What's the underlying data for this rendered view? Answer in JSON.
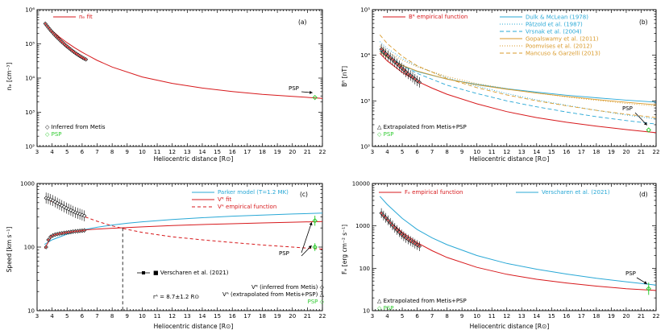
{
  "colors": {
    "red": "#d7191c",
    "cyan": "#29a8d6",
    "orange": "#d99a2b",
    "green": "#33cc33",
    "black": "#000000",
    "gray": "#8a8a8a"
  },
  "chart_data": [
    {
      "type": "line",
      "panel_label": "(a)",
      "xlabel": "Heliocentric distance [R⊙]",
      "ylabel": "nₑ [cm⁻³]",
      "xlim": [
        3,
        22
      ],
      "ylim": [
        100,
        1000000
      ],
      "xticks": [
        3,
        4,
        5,
        6,
        7,
        8,
        9,
        10,
        11,
        12,
        13,
        14,
        15,
        16,
        17,
        18,
        19,
        20,
        21,
        22
      ],
      "yticks": [
        100,
        1000,
        10000,
        100000,
        1000000
      ],
      "ytick_labels": [
        "10²",
        "10³",
        "10⁴",
        "10⁵",
        "10⁶"
      ],
      "legend_top": "nₑ fit",
      "legend_bottom": [
        "◇ Inferred from Metis",
        "◇ PSP"
      ],
      "fit": {
        "x": [
          3.5,
          4,
          4.5,
          5,
          5.5,
          6,
          6.3,
          7,
          8,
          10,
          12,
          14,
          16,
          18,
          20,
          22
        ],
        "y": [
          400000,
          245000,
          158000,
          108000,
          77000,
          57000,
          48000,
          33000,
          21000,
          10800,
          7000,
          5100,
          4050,
          3350,
          2900,
          2550
        ]
      },
      "metis": {
        "x": [
          3.55,
          3.65,
          3.75,
          3.85,
          3.95,
          4.05,
          4.15,
          4.25,
          4.35,
          4.45,
          4.55,
          4.65,
          4.75,
          4.85,
          4.95,
          5.05,
          5.15,
          5.25,
          5.35,
          5.45,
          5.55,
          5.65,
          5.75,
          5.85,
          5.95,
          6.05,
          6.15,
          6.25
        ],
        "y": [
          390000,
          340000,
          300000,
          265000,
          235000,
          210000,
          188000,
          168000,
          152000,
          138000,
          125000,
          114000,
          104000,
          95000,
          87000,
          80000,
          73500,
          68000,
          62500,
          58000,
          54000,
          50500,
          47000,
          44000,
          41500,
          39000,
          37000,
          35000
        ]
      },
      "psp": {
        "x": 21.5,
        "y": 2700,
        "label": "PSP"
      }
    },
    {
      "type": "line",
      "panel_label": "(b)",
      "xlabel": "Heliocentric distance [R⊙]",
      "ylabel": "Bᴿ [nT]",
      "xlim": [
        3,
        22
      ],
      "ylim": [
        100,
        100000
      ],
      "xticks": [
        3,
        4,
        5,
        6,
        7,
        8,
        9,
        10,
        11,
        12,
        13,
        14,
        15,
        16,
        17,
        18,
        19,
        20,
        21,
        22
      ],
      "yticks": [
        100,
        1000,
        10000,
        100000
      ],
      "ytick_labels": [
        "10²",
        "10³",
        "10⁴",
        "10⁵"
      ],
      "legend_top": "Bᴿ empirical function",
      "legend_bottom": [
        "△ Extrapolated from Metis+PSP",
        "◇ PSP"
      ],
      "series_legend": [
        {
          "name": "Dulk & McLean (1978)",
          "color": "cyan",
          "dash": ""
        },
        {
          "name": "Pätzold et al. (1987)",
          "color": "cyan",
          "dash": "1,2"
        },
        {
          "name": "Vrsnak et al. (2004)",
          "color": "cyan",
          "dash": "5,3"
        },
        {
          "name": "Gopalswamy et al. (2011)",
          "color": "orange",
          "dash": ""
        },
        {
          "name": "Poomvises et al. (2012)",
          "color": "orange",
          "dash": "1,2"
        },
        {
          "name": "Mancuso & Garzelli (2013)",
          "color": "orange",
          "dash": "5,3"
        }
      ],
      "empirical": {
        "x": [
          3.5,
          4,
          5,
          6,
          7,
          8,
          10,
          12,
          14,
          16,
          18,
          20,
          22
        ],
        "y": [
          11000,
          7500,
          4200,
          2700,
          1900,
          1400,
          860,
          580,
          430,
          340,
          280,
          235,
          200
        ]
      },
      "models": [
        {
          "x": [
            3.5,
            4,
            5,
            6,
            8,
            10,
            12,
            14,
            16,
            18,
            20,
            22
          ],
          "y": [
            12500,
            9000,
            6000,
            4400,
            3000,
            2300,
            1850,
            1550,
            1330,
            1170,
            1040,
            940
          ]
        },
        {
          "x": [
            3.5,
            4,
            5,
            6,
            8,
            10,
            12,
            14,
            16,
            18,
            20,
            22
          ],
          "y": [
            20000,
            14000,
            8500,
            5700,
            3200,
            2100,
            1450,
            1050,
            800,
            620,
            490,
            400
          ]
        },
        {
          "x": [
            3.5,
            4,
            5,
            6,
            8,
            10,
            12,
            14,
            16,
            18,
            20,
            22
          ],
          "y": [
            14000,
            10000,
            6000,
            4000,
            2200,
            1450,
            1000,
            740,
            570,
            450,
            370,
            310
          ]
        },
        {
          "x": [
            3.5,
            4,
            5,
            6,
            8,
            10,
            12,
            14,
            16,
            18,
            20,
            22
          ],
          "y": [
            12000,
            9000,
            6000,
            4500,
            3000,
            2250,
            1800,
            1480,
            1250,
            1070,
            930,
            820
          ]
        },
        {
          "x": [
            3.5,
            4,
            5,
            6,
            8,
            10,
            12,
            14,
            16,
            18,
            20,
            22
          ],
          "y": [
            16000,
            12000,
            7800,
            5600,
            3400,
            2400,
            1850,
            1480,
            1220,
            1030,
            880,
            770
          ]
        },
        {
          "x": [
            3.5,
            4,
            5,
            6,
            8,
            10,
            12,
            14,
            16,
            18,
            20,
            22
          ],
          "y": [
            28000,
            18000,
            9500,
            5900,
            3100,
            1950,
            1350,
            1000,
            780,
            620,
            510,
            430
          ]
        }
      ],
      "metis": {
        "x": [
          3.6,
          3.75,
          3.9,
          4.05,
          4.2,
          4.35,
          4.5,
          4.65,
          4.8,
          4.95,
          5.1,
          5.25,
          5.4,
          5.55,
          5.7,
          5.85,
          6.0,
          6.15
        ],
        "y": [
          13500,
          12000,
          10800,
          9800,
          8800,
          8000,
          7200,
          6500,
          5900,
          5300,
          4800,
          4300,
          3900,
          3600,
          3300,
          3000,
          2750,
          2550
        ]
      },
      "psp": {
        "x": 21.5,
        "y": 230,
        "label": "PSP"
      }
    },
    {
      "type": "line",
      "panel_label": "(c)",
      "xlabel": "Heliocentric distance [R⊙]",
      "ylabel": "Speed [km s⁻¹]",
      "xlim": [
        3,
        22
      ],
      "ylim": [
        10,
        1000
      ],
      "xticks": [
        3,
        4,
        5,
        6,
        7,
        8,
        9,
        10,
        11,
        12,
        13,
        14,
        15,
        16,
        17,
        18,
        19,
        20,
        21,
        22
      ],
      "yticks": [
        10,
        100,
        1000
      ],
      "ytick_labels": [
        "10",
        "100",
        "1000"
      ],
      "legend_top": [
        "Parker model (T=1.2 MK)",
        "Vᴿ fit",
        "Vᴬ empirical function"
      ],
      "annotation": "rᴬ = 8.7±1.2 R⊙",
      "legend_bottom": [
        "■ Verscharen et al. (2021)",
        "Vᴿ (inferred from Metis) ◇",
        "Vᴬ (extrapolated from Metis+PSP) △",
        "PSP ◇"
      ],
      "parker": {
        "x": [
          3.5,
          4,
          5,
          6,
          7,
          8,
          9,
          10,
          12,
          14,
          16,
          18,
          20,
          22
        ],
        "y": [
          110,
          130,
          160,
          185,
          205,
          222,
          237,
          250,
          272,
          290,
          306,
          319,
          331,
          342
        ]
      },
      "vr_fit": {
        "x": [
          3.5,
          4,
          5,
          6,
          7,
          8,
          10,
          12,
          14,
          16,
          18,
          20,
          22
        ],
        "y": [
          95,
          150,
          175,
          185,
          192,
          198,
          208,
          218,
          226,
          233,
          240,
          246,
          252
        ]
      },
      "va_emp": {
        "x": [
          3.5,
          4,
          5,
          6,
          7,
          8,
          9,
          10,
          12,
          14,
          16,
          18,
          20,
          22
        ],
        "y": [
          600,
          520,
          400,
          310,
          255,
          215,
          190,
          170,
          145,
          130,
          118,
          108,
          100,
          93
        ]
      },
      "vr_metis": {
        "x": [
          3.6,
          3.75,
          3.9,
          4.05,
          4.2,
          4.35,
          4.5,
          4.65,
          4.8,
          4.95,
          5.1,
          5.25,
          5.4,
          5.55,
          5.7,
          5.85,
          6.0,
          6.15
        ],
        "y": [
          100,
          130,
          145,
          152,
          157,
          160,
          163,
          165,
          167,
          169,
          171,
          173,
          175,
          177,
          178,
          180,
          181,
          183
        ]
      },
      "va_metis": {
        "x": [
          3.6,
          3.75,
          3.9,
          4.05,
          4.2,
          4.35,
          4.5,
          4.65,
          4.8,
          4.95,
          5.1,
          5.25,
          5.4,
          5.55,
          5.7,
          5.85,
          6.0,
          6.15
        ],
        "y": [
          590,
          580,
          560,
          540,
          515,
          490,
          470,
          450,
          430,
          410,
          395,
          380,
          365,
          350,
          340,
          330,
          320,
          310
        ]
      },
      "r_alfven": 8.7,
      "psp": {
        "x": 21.5,
        "va": 100,
        "vr": 260,
        "label": "PSP"
      }
    },
    {
      "type": "line",
      "panel_label": "(d)",
      "xlabel": "Heliocentric distance [R⊙]",
      "ylabel": "Fₑ [erg cm⁻² s⁻¹]",
      "xlim": [
        3,
        22
      ],
      "ylim": [
        10,
        10000
      ],
      "xticks": [
        3,
        4,
        5,
        6,
        7,
        8,
        9,
        10,
        11,
        12,
        13,
        14,
        15,
        16,
        17,
        18,
        19,
        20,
        21,
        22
      ],
      "yticks": [
        10,
        100,
        1000,
        10000
      ],
      "ytick_labels": [
        "10",
        "100",
        "1000",
        "10000"
      ],
      "legend_top": [
        "Fₑ empirical function",
        "Verscharen et al. (2021)"
      ],
      "legend_bottom": [
        "△ Extrapolated from Metis+PSP",
        "◇ PSP"
      ],
      "empirical": {
        "x": [
          3.5,
          4,
          5,
          6,
          7,
          8,
          10,
          12,
          14,
          16,
          18,
          20,
          22
        ],
        "y": [
          2000,
          1400,
          700,
          400,
          260,
          180,
          105,
          72,
          55,
          45,
          38,
          33,
          30
        ]
      },
      "verscharen": {
        "x": [
          3.5,
          4,
          5,
          6,
          7,
          8,
          10,
          12,
          14,
          16,
          18,
          20,
          22
        ],
        "y": [
          5000,
          3200,
          1500,
          820,
          520,
          360,
          200,
          130,
          95,
          73,
          58,
          48,
          40
        ]
      },
      "metis": {
        "x": [
          3.6,
          3.75,
          3.9,
          4.05,
          4.2,
          4.35,
          4.5,
          4.65,
          4.8,
          4.95,
          5.1,
          5.25,
          5.4,
          5.55,
          5.7,
          5.85,
          6.0,
          6.15
        ],
        "y": [
          2000,
          1750,
          1550,
          1350,
          1180,
          1030,
          900,
          800,
          710,
          630,
          570,
          520,
          480,
          440,
          410,
          380,
          355,
          330
        ]
      },
      "psp": {
        "x": 21.5,
        "y": 33,
        "label": "PSP"
      }
    }
  ]
}
